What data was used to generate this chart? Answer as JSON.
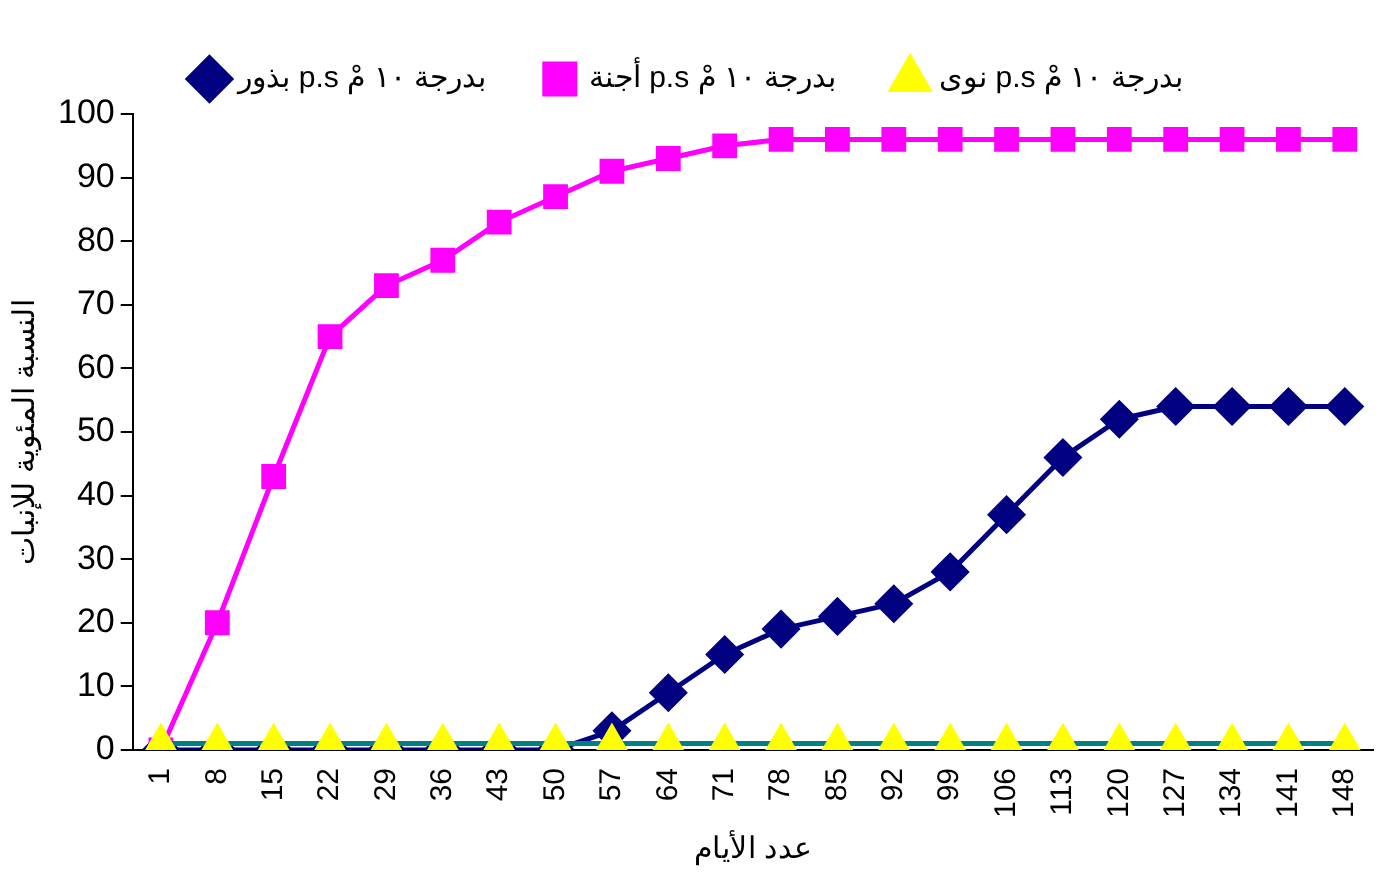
{
  "chart_data": {
    "type": "line",
    "xlabel": "عدد الأيام",
    "ylabel": "النسبة المئوية للإنبات",
    "categories": [
      "1",
      "8",
      "15",
      "22",
      "29",
      "36",
      "43",
      "50",
      "57",
      "64",
      "71",
      "78",
      "85",
      "92",
      "99",
      "106",
      "113",
      "120",
      "127",
      "134",
      "141",
      "148"
    ],
    "series": [
      {
        "name": "بذور p.s بدرجة ١٠ مْ",
        "color": "#000080",
        "marker": "diamond",
        "values": [
          0,
          0,
          0,
          0,
          0,
          0,
          0,
          0,
          3,
          9,
          15,
          19,
          21,
          23,
          28,
          37,
          46,
          52,
          54,
          54,
          54,
          54
        ]
      },
      {
        "name": "أجنة p.s بدرجة ١٠ مْ",
        "color": "#ff00ff",
        "marker": "square",
        "values": [
          0,
          20,
          43,
          65,
          73,
          77,
          83,
          87,
          91,
          93,
          95,
          96,
          96,
          96,
          96,
          96,
          96,
          96,
          96,
          96,
          96,
          96
        ]
      },
      {
        "name": "نوى p.s بدرجة ١٠ مْ",
        "color": "#008080",
        "marker": "triangle",
        "values": [
          1,
          1,
          1,
          1,
          1,
          1,
          1,
          1,
          1,
          1,
          1,
          1,
          1,
          1,
          1,
          1,
          1,
          1,
          1,
          1,
          1,
          1
        ]
      }
    ],
    "ylim": [
      0,
      100
    ],
    "yticks": [
      0,
      10,
      20,
      30,
      40,
      50,
      60,
      70,
      80,
      90,
      100
    ],
    "grid": false,
    "legend": "top",
    "line_style": "solid"
  }
}
